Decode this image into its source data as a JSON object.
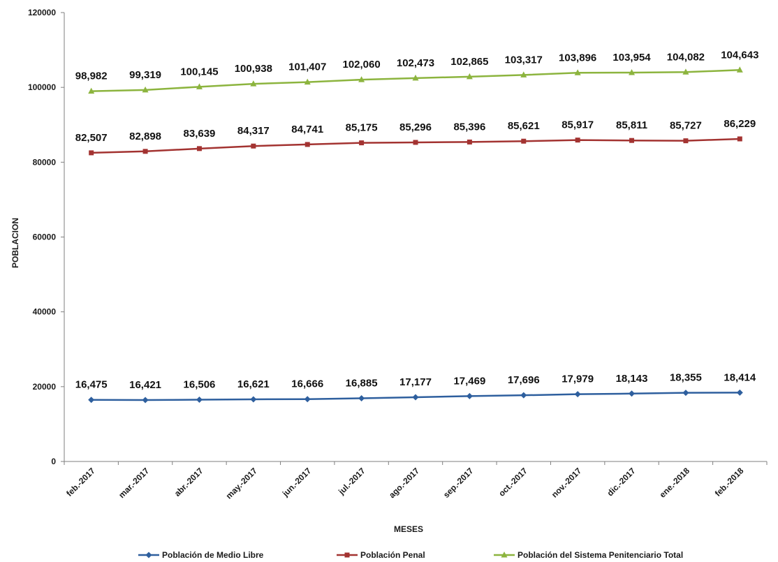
{
  "chart_data": {
    "type": "line",
    "title": "",
    "xlabel": "MESES",
    "ylabel": "POBLACION",
    "ylim": [
      0,
      120000
    ],
    "yticks": [
      "0",
      "20000",
      "40000",
      "60000",
      "80000",
      "100000",
      "120000"
    ],
    "categories": [
      "feb.-2017",
      "mar.-2017",
      "abr.-2017",
      "may.-2017",
      "jun.-2017",
      "jul.-2017",
      "ago.-2017",
      "sep.-2017",
      "oct.-2017",
      "nov.-2017",
      "dic.-2017",
      "ene.-2018",
      "feb.-2018"
    ],
    "grid": false,
    "legend_position": "bottom",
    "series": [
      {
        "name": "Población de Medio Libre",
        "color": "#2e5f9e",
        "marker": "diamond",
        "values": [
          16475,
          16421,
          16506,
          16621,
          16666,
          16885,
          17177,
          17469,
          17696,
          17979,
          18143,
          18355,
          18414
        ],
        "labels": [
          "16,475",
          "16,421",
          "16,506",
          "16,621",
          "16,666",
          "16,885",
          "17,177",
          "17,469",
          "17,696",
          "17,979",
          "18,143",
          "18,355",
          "18,414"
        ]
      },
      {
        "name": "Población Penal",
        "color": "#a33331",
        "marker": "square",
        "values": [
          82507,
          82898,
          83639,
          84317,
          84741,
          85175,
          85296,
          85396,
          85621,
          85917,
          85811,
          85727,
          86229
        ],
        "labels": [
          "82,507",
          "82,898",
          "83,639",
          "84,317",
          "84,741",
          "85,175",
          "85,296",
          "85,396",
          "85,621",
          "85,917",
          "85,811",
          "85,727",
          "86,229"
        ]
      },
      {
        "name": "Población del Sistema Penitenciario Total",
        "color": "#8cb43e",
        "marker": "triangle",
        "values": [
          98982,
          99319,
          100145,
          100938,
          101407,
          102060,
          102473,
          102865,
          103317,
          103896,
          103954,
          104082,
          104643
        ],
        "labels": [
          "98,982",
          "99,319",
          "100,145",
          "100,938",
          "101,407",
          "102,060",
          "102,473",
          "102,865",
          "103,317",
          "103,896",
          "103,954",
          "104,082",
          "104,643"
        ]
      }
    ]
  }
}
